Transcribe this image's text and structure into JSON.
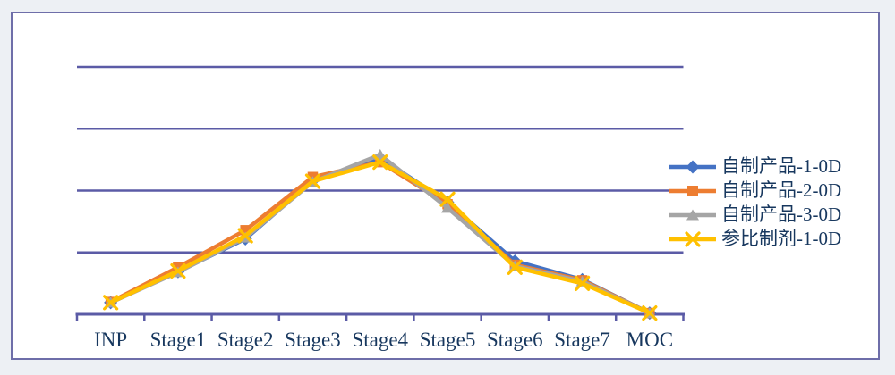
{
  "page": {
    "background_color": "#edf0f4"
  },
  "panel": {
    "background_color": "#ffffff",
    "border_color": "#6e6ea9"
  },
  "chart_data": {
    "type": "line",
    "title": "",
    "xlabel": "",
    "ylabel": "",
    "categories": [
      "INP",
      "Stage1",
      "Stage2",
      "Stage3",
      "Stage4",
      "Stage5",
      "Stage6",
      "Stage7",
      "MOC"
    ],
    "series": [
      {
        "name": "自制产品-1-0D",
        "color": "#4472C4",
        "marker": "diamond",
        "values": [
          0.95,
          3.45,
          6.1,
          10.8,
          12.65,
          9.05,
          4.3,
          2.8,
          0.1
        ]
      },
      {
        "name": "自制产品-2-0D",
        "color": "#ED7D31",
        "marker": "square",
        "values": [
          1.0,
          3.8,
          6.8,
          11.1,
          12.3,
          8.9,
          4.0,
          2.75,
          0.1
        ]
      },
      {
        "name": "自制产品-3-0D",
        "color": "#A5A5A5",
        "marker": "triangle",
        "values": [
          0.95,
          3.4,
          6.2,
          10.7,
          12.9,
          8.6,
          3.9,
          2.65,
          0.1
        ]
      },
      {
        "name": "参比制剂-1-0D",
        "color": "#FFC000",
        "marker": "x",
        "values": [
          0.95,
          3.5,
          6.35,
          10.75,
          12.3,
          9.3,
          3.8,
          2.5,
          0.1
        ]
      }
    ],
    "ylim": [
      0,
      20
    ],
    "gridline_step": 5,
    "y_axis_labels_visible": false,
    "grid": "horizontal",
    "legend_position": "right",
    "axis_color": "#5b5ba6",
    "gridline_color": "#5b5ba6",
    "label_color": "#17375e"
  }
}
